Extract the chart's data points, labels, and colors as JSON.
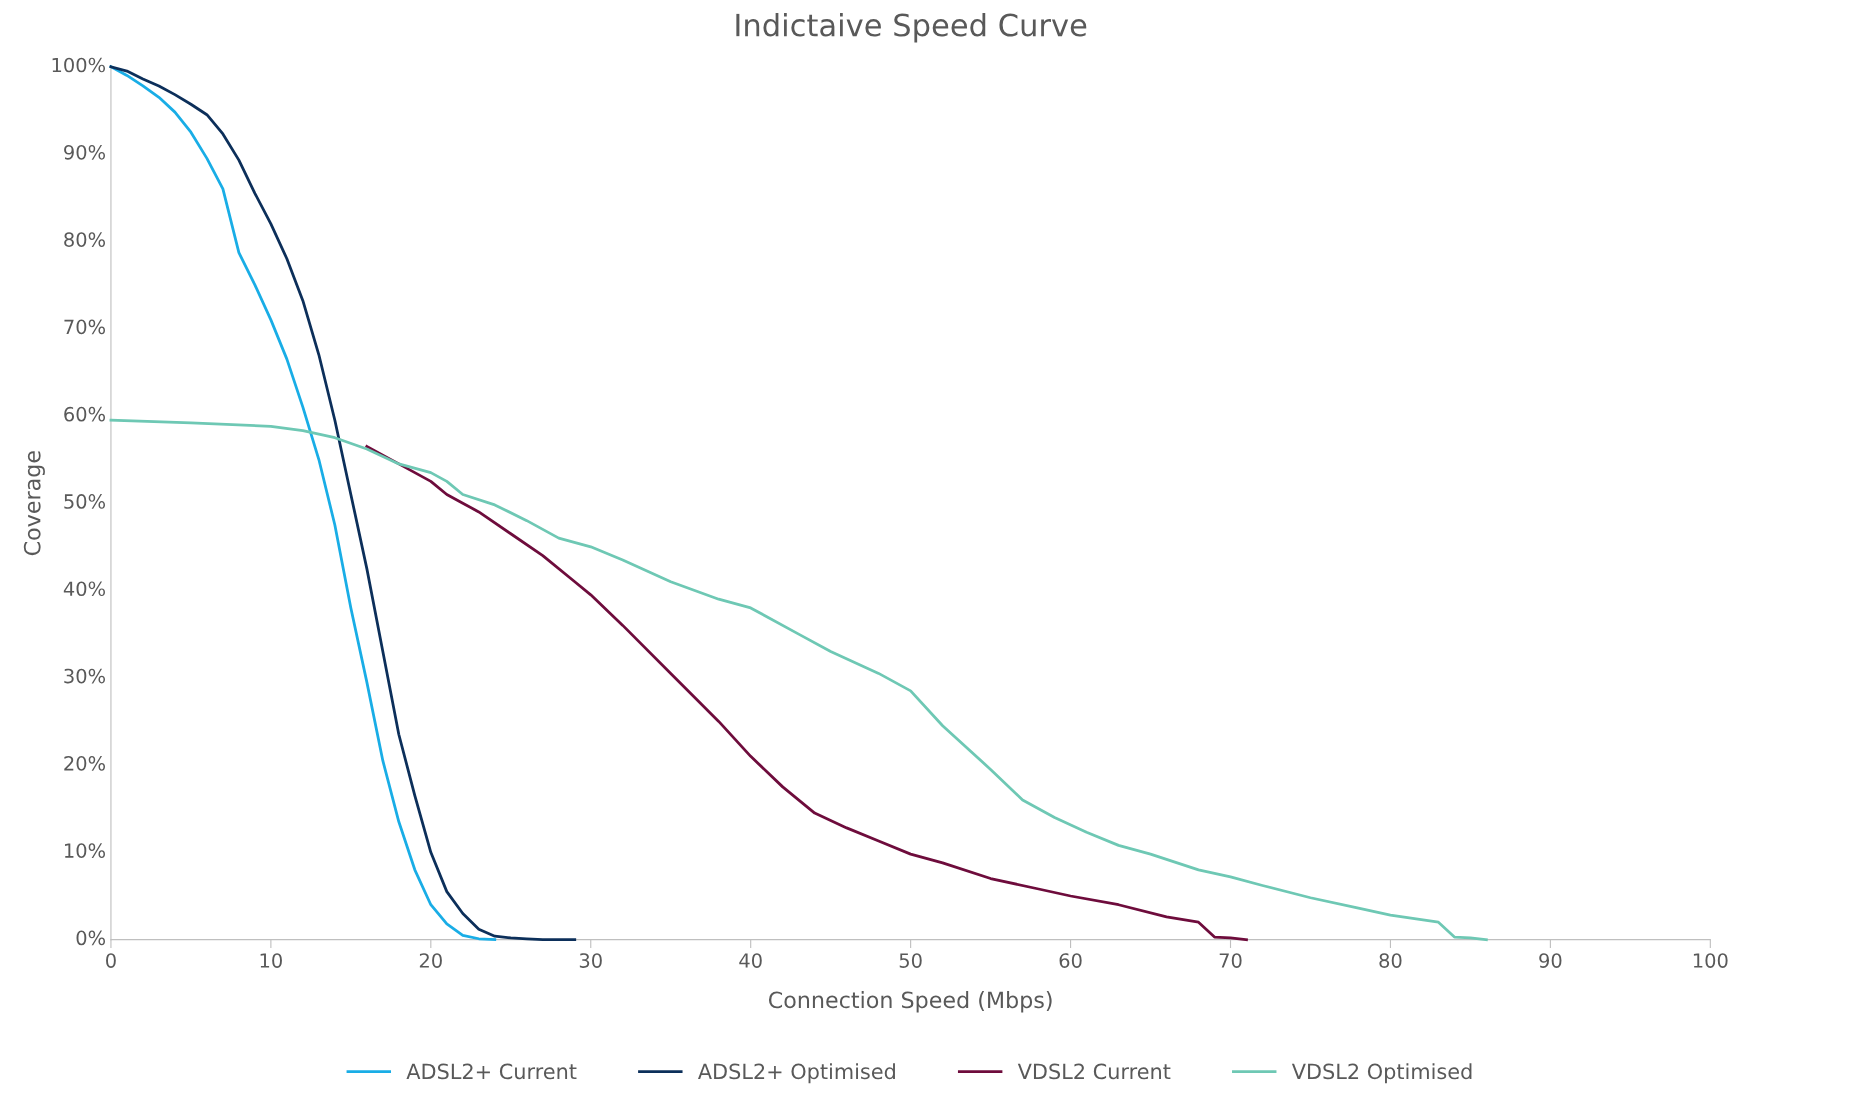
{
  "chart_data": {
    "type": "line",
    "title": "Indictaive Speed Curve",
    "xlabel": "Connection Speed (Mbps)",
    "ylabel": "Coverage",
    "xlim": [
      0,
      100
    ],
    "xticks": [
      0,
      10,
      20,
      30,
      40,
      50,
      60,
      70,
      80,
      90,
      100
    ],
    "ylim": [
      0,
      100
    ],
    "yticks": [
      {
        "value": 0,
        "label": "0%"
      },
      {
        "value": 10,
        "label": "10%"
      },
      {
        "value": 20,
        "label": "20%"
      },
      {
        "value": 30,
        "label": "30%"
      },
      {
        "value": 40,
        "label": "40%"
      },
      {
        "value": 50,
        "label": "50%"
      },
      {
        "value": 60,
        "label": "60%"
      },
      {
        "value": 70,
        "label": "70%"
      },
      {
        "value": 80,
        "label": "80%"
      },
      {
        "value": 90,
        "label": "90%"
      },
      {
        "value": 100,
        "label": "100%"
      }
    ],
    "grid": false,
    "legend": "bottom",
    "marker": "none",
    "line_style": "solid",
    "series": [
      {
        "name": "ADSL2+ Current",
        "color": "#19ade6",
        "x": [
          0,
          1,
          2,
          3,
          4,
          5,
          6,
          7,
          8,
          9,
          10,
          11,
          12,
          13,
          14,
          15,
          16,
          17,
          18,
          19,
          20,
          21,
          22,
          23,
          24
        ],
        "values": [
          100,
          99,
          97.8,
          96.5,
          94.8,
          92.5,
          89.5,
          86,
          78.7,
          75,
          71,
          66.5,
          61,
          55,
          47.5,
          38,
          29.5,
          20.5,
          13.5,
          8,
          4,
          1.8,
          0.5,
          0.1,
          0
        ]
      },
      {
        "name": "ADSL2+ Optimised",
        "color": "#0c2f5a",
        "x": [
          0,
          1,
          2,
          3,
          4,
          5,
          6,
          7,
          8,
          9,
          10,
          11,
          12,
          13,
          14,
          15,
          16,
          17,
          18,
          19,
          20,
          21,
          22,
          23,
          24,
          25,
          26,
          27,
          28,
          29
        ],
        "values": [
          100,
          99.5,
          98.6,
          97.8,
          96.8,
          95.7,
          94.5,
          92.3,
          89.3,
          85.5,
          82,
          78,
          73.2,
          67,
          59.5,
          51,
          42.5,
          33,
          23.5,
          16.5,
          10,
          5.5,
          3,
          1.2,
          0.4,
          0.2,
          0.1,
          0,
          0,
          0
        ]
      },
      {
        "name": "VDSL2 Current",
        "color": "#6e0c3c",
        "x": [
          16,
          18,
          20,
          21,
          22,
          23,
          25,
          27,
          29,
          30,
          32,
          35,
          38,
          40,
          42,
          44,
          46,
          48,
          50,
          52,
          55,
          58,
          60,
          63,
          66,
          68,
          69,
          70,
          71
        ],
        "values": [
          56.5,
          54.5,
          52.5,
          51,
          50,
          49,
          46.5,
          44,
          41,
          39.5,
          36,
          30.5,
          25,
          21,
          17.5,
          14.5,
          12.8,
          11.3,
          9.8,
          8.8,
          7,
          5.8,
          5,
          4,
          2.6,
          2,
          0.3,
          0.2,
          0
        ]
      },
      {
        "name": "VDSL2 Optimised",
        "color": "#6ec8b4",
        "x": [
          0,
          5,
          10,
          12,
          14,
          16,
          18,
          20,
          21,
          22,
          24,
          26,
          28,
          30,
          32,
          35,
          38,
          40,
          43,
          45,
          48,
          50,
          52,
          55,
          57,
          59,
          61,
          63,
          65,
          68,
          70,
          72,
          75,
          78,
          80,
          83,
          84,
          85,
          86
        ],
        "values": [
          59.5,
          59.2,
          58.8,
          58.3,
          57.5,
          56.2,
          54.5,
          53.5,
          52.5,
          51,
          49.8,
          48,
          46,
          45,
          43.5,
          41,
          39,
          38,
          35,
          33,
          30.5,
          28.5,
          24.5,
          19.5,
          16,
          14,
          12.3,
          10.8,
          9.8,
          8,
          7.2,
          6.2,
          4.8,
          3.6,
          2.8,
          2,
          0.3,
          0.2,
          0
        ]
      }
    ]
  }
}
